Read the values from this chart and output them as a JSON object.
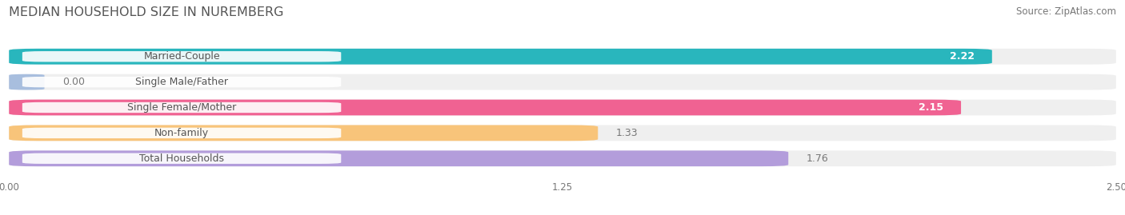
{
  "title": "MEDIAN HOUSEHOLD SIZE IN NUREMBERG",
  "source": "Source: ZipAtlas.com",
  "categories": [
    "Married-Couple",
    "Single Male/Father",
    "Single Female/Mother",
    "Non-family",
    "Total Households"
  ],
  "values": [
    2.22,
    0.0,
    2.15,
    1.33,
    1.76
  ],
  "bar_colors": [
    "#29b6bd",
    "#a8bede",
    "#f06292",
    "#f8c47a",
    "#b39ddb"
  ],
  "xlim": [
    0,
    2.5
  ],
  "xticks": [
    0.0,
    1.25,
    2.5
  ],
  "xtick_labels": [
    "0.00",
    "1.25",
    "2.50"
  ],
  "background_color": "#ffffff",
  "bar_bg_color": "#efefef",
  "title_fontsize": 11.5,
  "source_fontsize": 8.5,
  "label_fontsize": 9,
  "value_fontsize": 9,
  "bar_height": 0.62,
  "bar_gap": 0.38
}
